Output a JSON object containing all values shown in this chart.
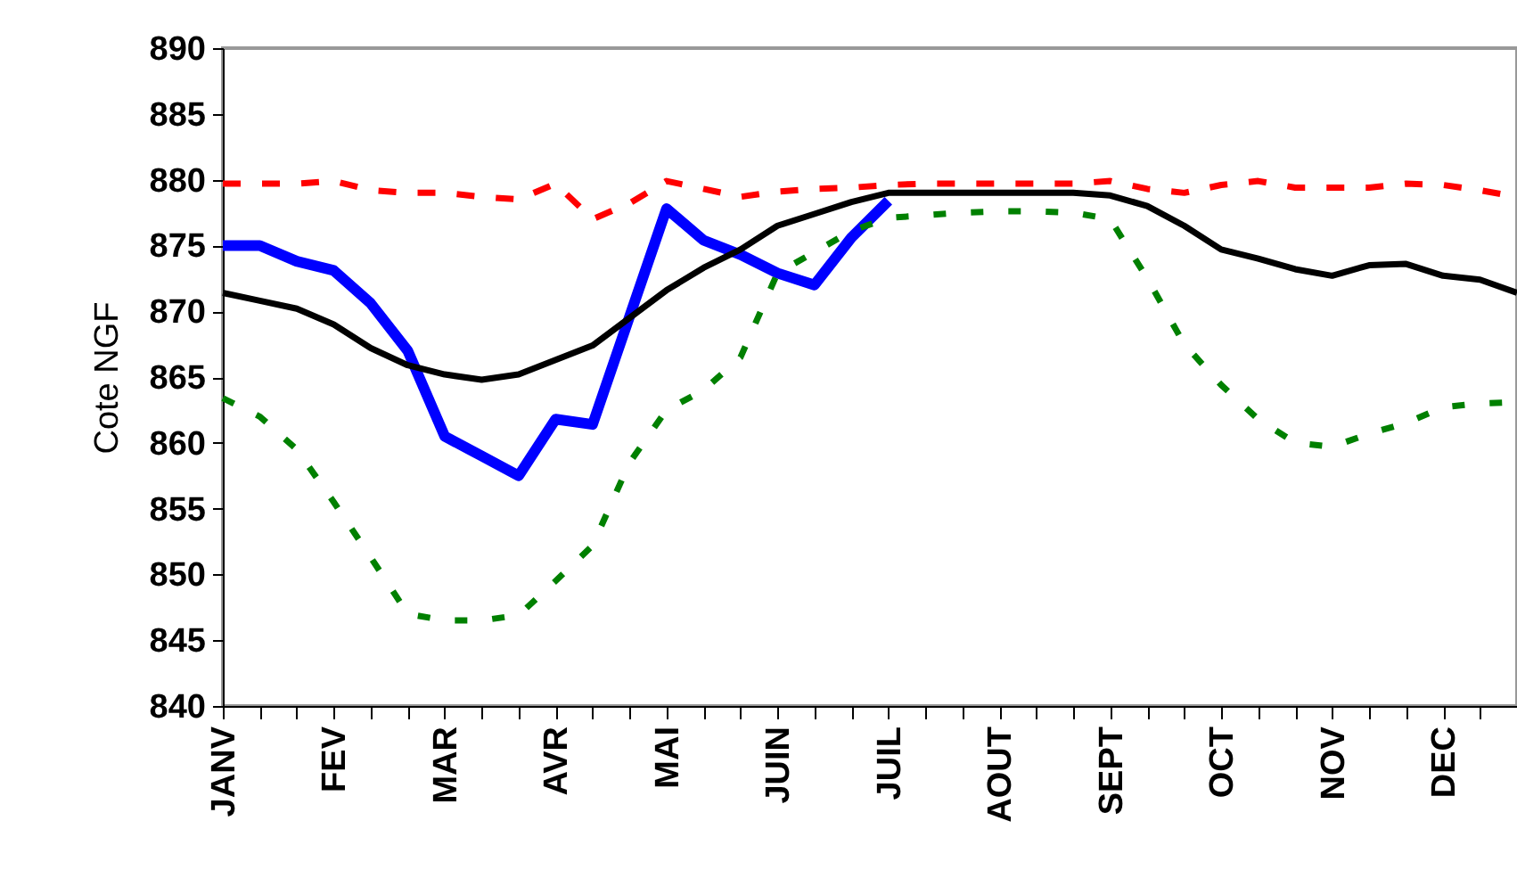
{
  "chart_data": {
    "type": "line",
    "ylabel": "Cote NGF",
    "ylim": [
      840,
      890
    ],
    "yticks": [
      840,
      845,
      850,
      855,
      860,
      865,
      870,
      875,
      880,
      885,
      890
    ],
    "categories": [
      "JANV",
      null,
      null,
      "FEV",
      null,
      null,
      "MAR",
      null,
      null,
      "AVR",
      null,
      null,
      "MAI",
      null,
      null,
      "JUIN",
      null,
      null,
      "JUIL",
      null,
      null,
      "AOUT",
      null,
      null,
      "SEPT",
      null,
      null,
      "OCT",
      null,
      null,
      "NOV",
      null,
      null,
      "DEC",
      null,
      null
    ],
    "grid": false,
    "series": [
      {
        "color": "#0000ff",
        "line_style": "solid",
        "values": [
          875,
          875,
          873.8,
          873.1,
          870.6,
          867,
          860.5,
          859,
          857.5,
          861.8,
          861.4,
          869.6,
          877.8,
          875.4,
          874.3,
          872.9,
          872,
          875.6,
          878.4,
          null,
          null,
          null,
          null,
          null,
          null,
          null,
          null,
          null,
          null,
          null,
          null,
          null,
          null,
          null,
          null,
          null
        ]
      },
      {
        "color": "#000000",
        "line_style": "solid",
        "values": [
          871.4,
          870.8,
          870.2,
          869,
          867.2,
          865.9,
          865.2,
          864.8,
          865.2,
          866.3,
          867.4,
          869.5,
          871.6,
          873.3,
          874.7,
          876.5,
          877.4,
          878.3,
          879,
          879,
          879,
          879,
          879,
          879,
          878.8,
          878,
          876.5,
          874.7,
          874,
          873.2,
          872.7,
          873.5,
          873.6,
          872.7,
          872.4,
          871.4
        ]
      },
      {
        "color": "#ff0000",
        "line_style": "dashed",
        "values": [
          879.7,
          879.7,
          879.7,
          879.9,
          879.2,
          879,
          879,
          878.7,
          878.5,
          879.7,
          877,
          878.2,
          879.9,
          879.3,
          878.7,
          879.1,
          879.3,
          879.4,
          879.6,
          879.7,
          879.7,
          879.7,
          879.7,
          879.7,
          879.9,
          879.3,
          879,
          879.6,
          879.9,
          879.4,
          879.4,
          879.4,
          879.7,
          879.6,
          879.2,
          878.7
        ]
      },
      {
        "color": "#008000",
        "line_style": "dotted",
        "values": [
          863.4,
          862,
          859.5,
          855.5,
          851.3,
          847,
          846.5,
          846.5,
          846.9,
          849.5,
          852.2,
          858.5,
          862.5,
          864,
          866.5,
          872.9,
          874.5,
          876.1,
          877.1,
          877.3,
          877.5,
          877.6,
          877.6,
          877.5,
          877,
          872.5,
          867.5,
          864.4,
          861.8,
          860,
          859.7,
          860.7,
          861.5,
          862.7,
          863,
          863.1
        ]
      }
    ]
  }
}
